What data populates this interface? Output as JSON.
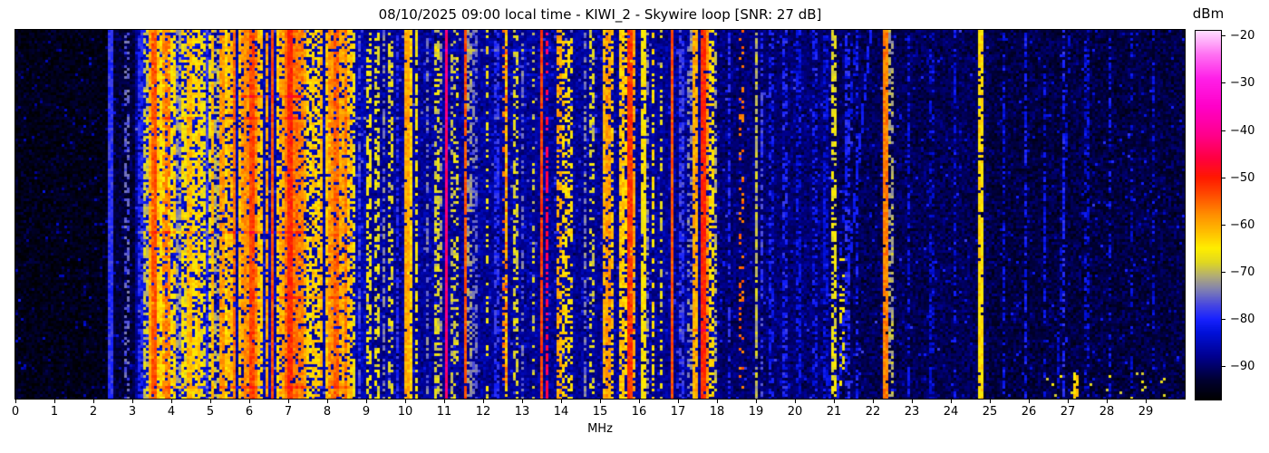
{
  "title": "08/10/2025 09:00 local time - KIWI_2 - Skywire loop [SNR: 27 dB]",
  "chart_data": {
    "type": "heatmap",
    "subtype": "hf-radio-spectrogram-waterfall",
    "title": "08/10/2025 09:00 local time - KIWI_2 - Skywire loop [SNR: 27 dB]",
    "xlabel": "MHz",
    "x_range": [
      0,
      30
    ],
    "x_ticks": [
      "0",
      "1",
      "2",
      "3",
      "4",
      "5",
      "6",
      "7",
      "8",
      "9",
      "10",
      "11",
      "12",
      "13",
      "14",
      "15",
      "16",
      "17",
      "18",
      "19",
      "20",
      "21",
      "22",
      "23",
      "24",
      "25",
      "26",
      "27",
      "28",
      "29"
    ],
    "grid": false,
    "legend": "none",
    "colorbar": {
      "label": "dBm",
      "range": [
        -97,
        -19
      ],
      "ticks": [
        {
          "v": -20,
          "label": "−20"
        },
        {
          "v": -30,
          "label": "−30"
        },
        {
          "v": -40,
          "label": "−40"
        },
        {
          "v": -50,
          "label": "−50"
        },
        {
          "v": -60,
          "label": "−60"
        },
        {
          "v": -70,
          "label": "−70"
        },
        {
          "v": -80,
          "label": "−80"
        },
        {
          "v": -90,
          "label": "−90"
        }
      ],
      "stops": [
        [
          -97,
          "#000002"
        ],
        [
          -93,
          "#000030"
        ],
        [
          -88,
          "#00008f"
        ],
        [
          -83,
          "#0010d8"
        ],
        [
          -80,
          "#1822ff"
        ],
        [
          -77,
          "#4848e0"
        ],
        [
          -74,
          "#7d7db4"
        ],
        [
          -71,
          "#b0ab78"
        ],
        [
          -68,
          "#e0d820"
        ],
        [
          -65,
          "#ffee00"
        ],
        [
          -62,
          "#ffc400"
        ],
        [
          -58,
          "#ff9000"
        ],
        [
          -54,
          "#ff5000"
        ],
        [
          -50,
          "#ff1800"
        ],
        [
          -46,
          "#ff0040"
        ],
        [
          -41,
          "#ff008c"
        ],
        [
          -35,
          "#ff00c8"
        ],
        [
          -29,
          "#ff20e8"
        ],
        [
          -24,
          "#ff70f2"
        ],
        [
          -19,
          "#ffdcff"
        ]
      ]
    },
    "seed": 42,
    "cell": {
      "w": 3,
      "h": 3
    },
    "noise_jitter": 3.4,
    "speckle": {
      "chance": 0.025,
      "boost_min": 5,
      "boost_max": 11
    },
    "noise_floor": [
      {
        "f0": 0.0,
        "f1": 2.42,
        "base": -95.0
      },
      {
        "f0": 2.42,
        "f1": 3.05,
        "base": -92.5
      },
      {
        "f0": 3.05,
        "f1": 3.3,
        "base": -87.5
      },
      {
        "f0": 3.3,
        "f1": 4.85,
        "base": -83.5
      },
      {
        "f0": 4.85,
        "f1": 9.0,
        "base": -86.0
      },
      {
        "f0": 9.0,
        "f1": 18.0,
        "base": -87.5
      },
      {
        "f0": 18.0,
        "f1": 21.0,
        "base": -89.5
      },
      {
        "f0": 21.0,
        "f1": 25.0,
        "base": -91.0
      },
      {
        "f0": 25.0,
        "f1": 30.0,
        "base": -92.0
      }
    ],
    "signals": [
      {
        "f": 2.45,
        "w": 0.035,
        "l": -79,
        "d": 1
      },
      {
        "f": 2.87,
        "w": 0.035,
        "l": -76,
        "d": 0.45
      },
      {
        "f": 3.2,
        "w": 0.03,
        "l": -80,
        "d": 0.8
      },
      {
        "f": 3.33,
        "w": 0.04,
        "l": -69,
        "d": 0.6
      },
      {
        "f": 3.5,
        "w": 0.05,
        "l": -60,
        "d": 0.9
      },
      {
        "f": 3.57,
        "w": 0.05,
        "l": -54,
        "d": 0.95
      },
      {
        "f": 3.65,
        "w": 0.04,
        "l": -62,
        "d": 0.8
      },
      {
        "f": 3.75,
        "w": 0.05,
        "l": -64,
        "d": 0.85
      },
      {
        "f": 3.82,
        "w": 0.03,
        "l": -58,
        "d": 0.7
      },
      {
        "f": 3.9,
        "w": 0.04,
        "l": -57,
        "d": 0.8
      },
      {
        "f": 3.98,
        "w": 0.04,
        "l": -65,
        "d": 0.7
      },
      {
        "f": 4.08,
        "w": 0.04,
        "l": -63,
        "d": 0.75
      },
      {
        "f": 4.18,
        "w": 0.03,
        "l": -72,
        "d": 0.6
      },
      {
        "f": 4.28,
        "w": 0.04,
        "l": -64,
        "d": 0.7
      },
      {
        "f": 4.38,
        "w": 0.03,
        "l": -67,
        "d": 0.6
      },
      {
        "f": 4.47,
        "w": 0.05,
        "l": -61,
        "d": 0.9
      },
      {
        "f": 4.6,
        "w": 0.04,
        "l": -64,
        "d": 0.7
      },
      {
        "f": 4.72,
        "w": 0.04,
        "l": -62,
        "d": 0.8
      },
      {
        "f": 4.81,
        "w": 0.03,
        "l": -66,
        "d": 0.6
      },
      {
        "f": 4.9,
        "w": 0.03,
        "l": -78,
        "d": 0.7
      },
      {
        "f": 5.0,
        "w": 0.04,
        "l": -67,
        "d": 0.6
      },
      {
        "f": 5.06,
        "w": 0.05,
        "l": -61,
        "d": 0.9
      },
      {
        "f": 5.16,
        "w": 0.03,
        "l": -70,
        "d": 0.5
      },
      {
        "f": 5.3,
        "w": 0.05,
        "l": -59,
        "d": 0.85
      },
      {
        "f": 5.4,
        "w": 0.04,
        "l": -63,
        "d": 0.7
      },
      {
        "f": 5.5,
        "w": 0.04,
        "l": -61,
        "d": 0.75
      },
      {
        "f": 5.6,
        "w": 0.035,
        "l": -56,
        "d": 0.9
      },
      {
        "f": 5.75,
        "w": 0.04,
        "l": -62,
        "d": 0.8
      },
      {
        "f": 5.85,
        "w": 0.04,
        "l": -59,
        "d": 0.7
      },
      {
        "f": 5.95,
        "w": 0.05,
        "l": -58,
        "d": 0.85
      },
      {
        "f": 6.06,
        "w": 0.06,
        "l": -53,
        "d": 0.95
      },
      {
        "f": 6.18,
        "w": 0.05,
        "l": -57,
        "d": 0.85
      },
      {
        "f": 6.3,
        "w": 0.05,
        "l": -62,
        "d": 0.8
      },
      {
        "f": 6.45,
        "w": 0.04,
        "l": -59,
        "d": 0.8
      },
      {
        "f": 6.6,
        "w": 0.035,
        "l": -54,
        "d": 1
      },
      {
        "f": 6.72,
        "w": 0.04,
        "l": -63,
        "d": 0.7
      },
      {
        "f": 6.83,
        "w": 0.04,
        "l": -60,
        "d": 0.75
      },
      {
        "f": 6.95,
        "w": 0.05,
        "l": -56,
        "d": 0.9
      },
      {
        "f": 7.06,
        "w": 0.1,
        "l": -51,
        "d": 0.97
      },
      {
        "f": 7.2,
        "w": 0.07,
        "l": -56,
        "d": 0.9
      },
      {
        "f": 7.31,
        "w": 0.06,
        "l": -57,
        "d": 0.85
      },
      {
        "f": 7.42,
        "w": 0.04,
        "l": -60,
        "d": 0.7
      },
      {
        "f": 7.53,
        "w": 0.04,
        "l": -64,
        "d": 0.6
      },
      {
        "f": 7.63,
        "w": 0.04,
        "l": -62,
        "d": 0.7
      },
      {
        "f": 7.75,
        "w": 0.04,
        "l": -63,
        "d": 0.65
      },
      {
        "f": 7.86,
        "w": 0.04,
        "l": -61,
        "d": 0.7
      },
      {
        "f": 8.0,
        "w": 0.05,
        "l": -62,
        "d": 0.75
      },
      {
        "f": 8.11,
        "w": 0.06,
        "l": -58,
        "d": 0.85
      },
      {
        "f": 8.22,
        "w": 0.07,
        "l": -55,
        "d": 0.9
      },
      {
        "f": 8.35,
        "w": 0.06,
        "l": -60,
        "d": 0.8
      },
      {
        "f": 8.47,
        "w": 0.05,
        "l": -57,
        "d": 0.85
      },
      {
        "f": 8.58,
        "w": 0.04,
        "l": -62,
        "d": 0.7
      },
      {
        "f": 8.68,
        "w": 0.03,
        "l": -66,
        "d": 0.6
      },
      {
        "f": 8.83,
        "w": 0.03,
        "l": -77,
        "d": 0.6
      },
      {
        "f": 9.06,
        "w": 0.04,
        "l": -66,
        "d": 0.5
      },
      {
        "f": 9.27,
        "w": 0.04,
        "l": -67,
        "d": 0.5
      },
      {
        "f": 9.45,
        "w": 0.03,
        "l": -74,
        "d": 0.5
      },
      {
        "f": 9.63,
        "w": 0.04,
        "l": -68,
        "d": 0.45
      },
      {
        "f": 9.8,
        "w": 0.03,
        "l": -79,
        "d": 0.6
      },
      {
        "f": 10.03,
        "w": 0.06,
        "l": -60,
        "d": 0.95
      },
      {
        "f": 10.12,
        "w": 0.05,
        "l": -63,
        "d": 0.9
      },
      {
        "f": 10.3,
        "w": 0.04,
        "l": -66,
        "d": 0.6
      },
      {
        "f": 10.56,
        "w": 0.03,
        "l": -74,
        "d": 0.5
      },
      {
        "f": 10.82,
        "w": 0.04,
        "l": -68,
        "d": 0.55
      },
      {
        "f": 10.93,
        "w": 0.03,
        "l": -72,
        "d": 0.45
      },
      {
        "f": 11.05,
        "w": 0.03,
        "l": -43,
        "d": 1
      },
      {
        "f": 11.2,
        "w": 0.03,
        "l": -70,
        "d": 0.45
      },
      {
        "f": 11.32,
        "w": 0.04,
        "l": -68,
        "d": 0.35
      },
      {
        "f": 11.53,
        "w": 0.035,
        "l": -54,
        "d": 0.95
      },
      {
        "f": 11.65,
        "w": 0.03,
        "l": -72,
        "d": 0.5
      },
      {
        "f": 11.8,
        "w": 0.03,
        "l": -75,
        "d": 0.5
      },
      {
        "f": 12.1,
        "w": 0.04,
        "l": -67,
        "d": 0.4
      },
      {
        "f": 12.35,
        "w": 0.03,
        "l": -79,
        "d": 0.6
      },
      {
        "f": 12.6,
        "w": 0.05,
        "l": -62,
        "d": 0.9
      },
      {
        "f": 12.57,
        "w": 0.03,
        "l": -56,
        "d": 0.3
      },
      {
        "f": 12.82,
        "w": 0.04,
        "l": -68,
        "d": 0.5
      },
      {
        "f": 13.02,
        "w": 0.03,
        "l": -75,
        "d": 0.45
      },
      {
        "f": 13.28,
        "w": 0.04,
        "l": -69,
        "d": 0.4
      },
      {
        "f": 13.5,
        "w": 0.035,
        "l": -53,
        "d": 0.97
      },
      {
        "f": 13.63,
        "w": 0.03,
        "l": -45,
        "d": 0.55
      },
      {
        "f": 13.95,
        "w": 0.05,
        "l": -60,
        "d": 0.55
      },
      {
        "f": 14.1,
        "w": 0.05,
        "l": -63,
        "d": 0.5
      },
      {
        "f": 14.25,
        "w": 0.04,
        "l": -64,
        "d": 0.45
      },
      {
        "f": 14.6,
        "w": 0.03,
        "l": -74,
        "d": 0.5
      },
      {
        "f": 14.8,
        "w": 0.04,
        "l": -68,
        "d": 0.5
      },
      {
        "f": 15.1,
        "w": 0.05,
        "l": -61,
        "d": 0.8
      },
      {
        "f": 15.2,
        "w": 0.05,
        "l": -59,
        "d": 0.8
      },
      {
        "f": 15.32,
        "w": 0.04,
        "l": -62,
        "d": 0.7
      },
      {
        "f": 15.55,
        "w": 0.04,
        "l": -62,
        "d": 0.8
      },
      {
        "f": 15.65,
        "w": 0.03,
        "l": -64,
        "d": 0.6
      },
      {
        "f": 15.77,
        "w": 0.06,
        "l": -52,
        "d": 0.95
      },
      {
        "f": 15.85,
        "w": 0.04,
        "l": -60,
        "d": 0.7
      },
      {
        "f": 16.12,
        "w": 0.035,
        "l": -65,
        "d": 0.8
      },
      {
        "f": 16.22,
        "w": 0.03,
        "l": -73,
        "d": 0.5
      },
      {
        "f": 16.37,
        "w": 0.05,
        "l": -64,
        "d": 0.5
      },
      {
        "f": 16.58,
        "w": 0.03,
        "l": -68,
        "d": 0.4
      },
      {
        "f": 16.84,
        "w": 0.04,
        "l": -54,
        "d": 1
      },
      {
        "f": 17.1,
        "w": 0.03,
        "l": -78,
        "d": 0.6
      },
      {
        "f": 17.3,
        "w": 0.03,
        "l": -73,
        "d": 0.4
      },
      {
        "f": 17.45,
        "w": 0.05,
        "l": -60,
        "d": 0.85
      },
      {
        "f": 17.63,
        "w": 0.09,
        "l": -51,
        "d": 0.97
      },
      {
        "f": 17.76,
        "w": 0.04,
        "l": -58,
        "d": 0.8
      },
      {
        "f": 17.85,
        "w": 0.03,
        "l": -64,
        "d": 0.6
      },
      {
        "f": 17.95,
        "w": 0.03,
        "l": -70,
        "d": 0.4
      },
      {
        "f": 18.3,
        "w": 0.03,
        "l": -80,
        "d": 0.5
      },
      {
        "f": 18.63,
        "w": 0.04,
        "l": -56,
        "d": 0.25
      },
      {
        "f": 19.0,
        "w": 0.035,
        "l": -70,
        "d": 0.8
      },
      {
        "f": 19.15,
        "w": 0.03,
        "l": -78,
        "d": 0.45
      },
      {
        "f": 19.4,
        "w": 0.03,
        "l": -81,
        "d": 0.5
      },
      {
        "f": 19.75,
        "w": 0.03,
        "l": -80,
        "d": 0.4
      },
      {
        "f": 20.1,
        "w": 0.03,
        "l": -82,
        "d": 0.5
      },
      {
        "f": 20.5,
        "w": 0.03,
        "l": -81,
        "d": 0.4
      },
      {
        "f": 20.8,
        "w": 0.03,
        "l": -83,
        "d": 0.5
      },
      {
        "f": 21.0,
        "w": 0.035,
        "l": -67,
        "d": 0.6
      },
      {
        "f": 21.2,
        "w": 0.04,
        "l": -66,
        "d": 0.3,
        "r0": 0.62,
        "r1": 1
      },
      {
        "f": 21.35,
        "w": 0.03,
        "l": -80,
        "d": 0.5
      },
      {
        "f": 21.6,
        "w": 0.03,
        "l": -81,
        "d": 0.4
      },
      {
        "f": 22.32,
        "w": 0.03,
        "l": -57,
        "d": 0.95
      },
      {
        "f": 22.46,
        "w": 0.03,
        "l": -71,
        "d": 0.5
      },
      {
        "f": 22.9,
        "w": 0.03,
        "l": -82,
        "d": 0.4
      },
      {
        "f": 23.5,
        "w": 0.03,
        "l": -83,
        "d": 0.4
      },
      {
        "f": 24.1,
        "w": 0.03,
        "l": -82,
        "d": 0.4
      },
      {
        "f": 24.78,
        "w": 0.04,
        "l": -64,
        "d": 0.9
      },
      {
        "f": 25.35,
        "w": 0.03,
        "l": -82,
        "d": 0.5
      },
      {
        "f": 25.9,
        "w": 0.03,
        "l": -81,
        "d": 0.5
      },
      {
        "f": 26.4,
        "w": 0.03,
        "l": -82,
        "d": 0.45
      },
      {
        "f": 26.9,
        "w": 0.03,
        "l": -80,
        "d": 0.5
      },
      {
        "f": 27.2,
        "w": 0.05,
        "l": -63,
        "d": 0.85,
        "r0": 0.94,
        "r1": 1
      },
      {
        "f": 27.5,
        "w": 0.03,
        "l": -83,
        "d": 0.45
      },
      {
        "f": 28.1,
        "w": 0.03,
        "l": -82,
        "d": 0.4
      },
      {
        "f": 28.65,
        "w": 0.03,
        "l": -83,
        "d": 0.4
      },
      {
        "f": 29.2,
        "w": 0.03,
        "l": -83,
        "d": 0.35
      }
    ],
    "streaks": [
      {
        "row": 7,
        "f0": 10.5,
        "f1": 14.0,
        "boost": 4
      },
      {
        "row": 16,
        "f0": 10.5,
        "f1": 13.8,
        "boost": 3.5
      },
      {
        "row": 24,
        "f0": 5.6,
        "f1": 7.5,
        "boost": 5
      },
      {
        "row": 32,
        "f0": 3.2,
        "f1": 13.8,
        "boost": 3.5
      },
      {
        "row": 74,
        "f0": 3.1,
        "f1": 7.4,
        "boost": 4.5
      },
      {
        "row": 98,
        "f0": 5.5,
        "f1": 9.0,
        "boost": 3.5
      },
      {
        "row": 110,
        "f0": 15.0,
        "f1": 18.0,
        "boost": 3
      },
      {
        "row": 131,
        "f0": 3.6,
        "f1": 8.6,
        "boost": 4.5
      }
    ],
    "diagonals": [
      {
        "f_top": 21.9,
        "f_bot": 21.05,
        "l": -81,
        "d": 0.75
      },
      {
        "f_top": 21.55,
        "f_bot": 20.85,
        "l": -82,
        "d": 0.6
      },
      {
        "f_top": 27.0,
        "f_bot": 26.7,
        "l": -83,
        "d": 0.5
      }
    ],
    "bottom_dots": {
      "f0": 26.4,
      "f1": 29.6,
      "r0": 0.93,
      "chance": 0.05,
      "l": -67
    }
  }
}
